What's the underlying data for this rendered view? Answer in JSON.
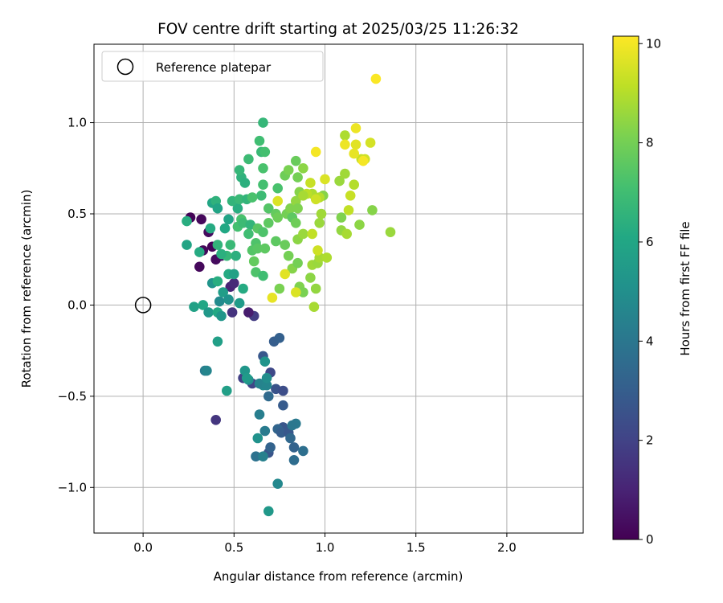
{
  "chart_data": {
    "type": "scatter",
    "title": "FOV centre drift starting at 2025/03/25 11:26:32",
    "xlabel": "Angular distance from reference (arcmin)",
    "ylabel": "Rotation from reference (arcmin)",
    "xlim": [
      -0.27,
      2.42
    ],
    "ylim": [
      -1.25,
      1.43
    ],
    "xticks": [
      0.0,
      0.5,
      1.0,
      1.5,
      2.0
    ],
    "xtick_labels": [
      "0.0",
      "0.5",
      "1.0",
      "1.5",
      "2.0"
    ],
    "yticks": [
      -1.0,
      -0.5,
      0.0,
      0.5,
      1.0
    ],
    "ytick_labels": [
      "−1.0",
      "−0.5",
      "0.0",
      "0.5",
      "1.0"
    ],
    "grid": true,
    "legend": {
      "placement": "upper-left",
      "entries": [
        {
          "label": "Reference platepar",
          "marker": "open-circle"
        }
      ]
    },
    "reference_point": {
      "x": 0.0,
      "y": 0.0
    },
    "colorbar": {
      "label": "Hours from first FF file",
      "range": [
        0,
        10.15
      ],
      "ticks": [
        0,
        2,
        4,
        6,
        8,
        10
      ],
      "tick_labels": [
        "0",
        "2",
        "4",
        "6",
        "8",
        "10"
      ],
      "colormap": "viridis"
    },
    "points": [
      [
        0.26,
        0.48,
        0.1
      ],
      [
        0.32,
        0.47,
        0.2
      ],
      [
        0.36,
        0.4,
        0.3
      ],
      [
        0.33,
        0.3,
        0.2
      ],
      [
        0.38,
        0.32,
        0.1
      ],
      [
        0.4,
        0.25,
        0.3
      ],
      [
        0.31,
        0.21,
        0.2
      ],
      [
        0.43,
        0.27,
        0.4
      ],
      [
        0.48,
        0.1,
        1.0
      ],
      [
        0.5,
        0.12,
        1.2
      ],
      [
        0.49,
        -0.04,
        1.5
      ],
      [
        0.61,
        -0.06,
        1.8
      ],
      [
        0.58,
        -0.04,
        0.8
      ],
      [
        0.4,
        -0.63,
        1.6
      ],
      [
        0.55,
        -0.4,
        1.9
      ],
      [
        0.6,
        -0.43,
        2.1
      ],
      [
        0.66,
        -0.28,
        2.8
      ],
      [
        0.7,
        -0.37,
        2.2
      ],
      [
        0.72,
        -0.2,
        3.0
      ],
      [
        0.75,
        -0.18,
        3.1
      ],
      [
        0.73,
        -0.46,
        2.6
      ],
      [
        0.77,
        -0.47,
        2.4
      ],
      [
        0.77,
        -0.55,
        2.9
      ],
      [
        0.77,
        -0.67,
        2.7
      ],
      [
        0.74,
        -0.68,
        3.3
      ],
      [
        0.76,
        -0.7,
        3.0
      ],
      [
        0.8,
        -0.7,
        2.8
      ],
      [
        0.81,
        -0.73,
        3.4
      ],
      [
        0.83,
        -0.85,
        3.6
      ],
      [
        0.83,
        -0.78,
        3.2
      ],
      [
        0.88,
        -0.8,
        3.7
      ],
      [
        0.84,
        -0.65,
        4.1
      ],
      [
        0.82,
        -0.66,
        4.0
      ],
      [
        0.69,
        -0.81,
        2.7
      ],
      [
        0.7,
        -0.78,
        3.2
      ],
      [
        0.62,
        -0.83,
        3.8
      ],
      [
        0.66,
        -0.83,
        4.4
      ],
      [
        0.67,
        -0.69,
        4.2
      ],
      [
        0.69,
        -0.5,
        3.5
      ],
      [
        0.64,
        -0.6,
        4.3
      ],
      [
        0.66,
        -0.44,
        4.8
      ],
      [
        0.64,
        -0.43,
        4.5
      ],
      [
        0.68,
        -0.44,
        4.6
      ],
      [
        0.68,
        -0.4,
        4.9
      ],
      [
        0.67,
        -0.31,
        5.2
      ],
      [
        0.58,
        -0.41,
        5.0
      ],
      [
        0.56,
        -0.36,
        5.3
      ],
      [
        0.57,
        -0.4,
        5.5
      ],
      [
        0.63,
        -0.73,
        5.1
      ],
      [
        0.74,
        -0.98,
        4.7
      ],
      [
        0.69,
        -1.13,
        5.4
      ],
      [
        0.46,
        -0.47,
        5.7
      ],
      [
        0.34,
        -0.36,
        4.2
      ],
      [
        0.35,
        -0.36,
        4.6
      ],
      [
        0.41,
        -0.2,
        5.7
      ],
      [
        0.28,
        -0.01,
        5.8
      ],
      [
        0.33,
        0.0,
        6.0
      ],
      [
        0.36,
        -0.04,
        5.4
      ],
      [
        0.41,
        -0.04,
        6.1
      ],
      [
        0.43,
        -0.06,
        5.3
      ],
      [
        0.42,
        0.02,
        4.8
      ],
      [
        0.44,
        0.07,
        5.6
      ],
      [
        0.38,
        0.12,
        5.2
      ],
      [
        0.41,
        0.13,
        6.3
      ],
      [
        0.47,
        0.17,
        6.2
      ],
      [
        0.47,
        0.03,
        5.1
      ],
      [
        0.53,
        0.01,
        5.5
      ],
      [
        0.55,
        0.09,
        6.2
      ],
      [
        0.5,
        0.17,
        5.8
      ],
      [
        0.51,
        0.27,
        6.4
      ],
      [
        0.46,
        0.27,
        6.7
      ],
      [
        0.45,
        0.42,
        6.1
      ],
      [
        0.47,
        0.47,
        5.9
      ],
      [
        0.52,
        0.53,
        6.3
      ],
      [
        0.49,
        0.57,
        6.6
      ],
      [
        0.38,
        0.56,
        6.0
      ],
      [
        0.4,
        0.57,
        6.5
      ],
      [
        0.41,
        0.53,
        5.9
      ],
      [
        0.37,
        0.42,
        6.2
      ],
      [
        0.24,
        0.46,
        6.3
      ],
      [
        0.24,
        0.33,
        5.9
      ],
      [
        0.31,
        0.29,
        6.2
      ],
      [
        0.41,
        0.33,
        6.6
      ],
      [
        0.43,
        0.28,
        6.4
      ],
      [
        0.48,
        0.33,
        6.8
      ],
      [
        0.52,
        0.43,
        7.1
      ],
      [
        0.54,
        0.47,
        7.2
      ],
      [
        0.55,
        0.45,
        6.9
      ],
      [
        0.53,
        0.58,
        6.8
      ],
      [
        0.57,
        0.58,
        6.6
      ],
      [
        0.54,
        0.7,
        6.5
      ],
      [
        0.53,
        0.74,
        6.7
      ],
      [
        0.56,
        0.67,
        6.4
      ],
      [
        0.58,
        0.8,
        6.9
      ],
      [
        0.65,
        0.84,
        6.8
      ],
      [
        0.67,
        0.84,
        7.1
      ],
      [
        0.66,
        1.0,
        6.7
      ],
      [
        0.64,
        0.9,
        7.0
      ],
      [
        0.66,
        0.75,
        7.2
      ],
      [
        0.66,
        0.66,
        7.1
      ],
      [
        0.65,
        0.6,
        6.9
      ],
      [
        0.6,
        0.59,
        7.2
      ],
      [
        0.59,
        0.44,
        6.6
      ],
      [
        0.58,
        0.39,
        7.0
      ],
      [
        0.62,
        0.34,
        7.3
      ],
      [
        0.6,
        0.3,
        7.4
      ],
      [
        0.63,
        0.31,
        7.5
      ],
      [
        0.67,
        0.31,
        7.6
      ],
      [
        0.61,
        0.24,
        7.7
      ],
      [
        0.62,
        0.18,
        7.3
      ],
      [
        0.66,
        0.16,
        7.0
      ],
      [
        0.63,
        0.42,
        7.5
      ],
      [
        0.66,
        0.4,
        7.3
      ],
      [
        0.69,
        0.45,
        7.6
      ],
      [
        0.69,
        0.53,
        7.4
      ],
      [
        0.73,
        0.5,
        7.7
      ],
      [
        0.74,
        0.48,
        7.9
      ],
      [
        0.74,
        0.64,
        7.2
      ],
      [
        0.73,
        0.35,
        7.6
      ],
      [
        0.78,
        0.33,
        7.8
      ],
      [
        0.8,
        0.27,
        8.0
      ],
      [
        0.82,
        0.2,
        8.3
      ],
      [
        0.75,
        0.09,
        8.1
      ],
      [
        0.79,
        0.5,
        8.0
      ],
      [
        0.81,
        0.53,
        8.2
      ],
      [
        0.78,
        0.71,
        7.9
      ],
      [
        0.8,
        0.74,
        8.1
      ],
      [
        0.84,
        0.79,
        7.8
      ],
      [
        0.85,
        0.7,
        8.0
      ],
      [
        0.86,
        0.62,
        8.3
      ],
      [
        0.84,
        0.57,
        8.5
      ],
      [
        0.88,
        0.75,
        8.4
      ],
      [
        0.85,
        0.53,
        8.2
      ],
      [
        0.82,
        0.48,
        7.6
      ],
      [
        0.84,
        0.45,
        7.9
      ],
      [
        0.85,
        0.36,
        8.4
      ],
      [
        0.88,
        0.39,
        8.6
      ],
      [
        0.85,
        0.23,
        8.0
      ],
      [
        0.86,
        0.1,
        8.2
      ],
      [
        0.92,
        0.15,
        8.4
      ],
      [
        0.95,
        0.09,
        8.5
      ],
      [
        0.93,
        0.22,
        8.7
      ],
      [
        0.88,
        0.07,
        8.1
      ],
      [
        0.94,
        -0.01,
        8.8
      ],
      [
        0.96,
        0.23,
        8.6
      ],
      [
        0.97,
        0.26,
        8.8
      ],
      [
        1.01,
        0.26,
        8.9
      ],
      [
        0.97,
        0.45,
        8.6
      ],
      [
        0.98,
        0.5,
        8.7
      ],
      [
        0.99,
        0.6,
        8.3
      ],
      [
        0.97,
        0.59,
        9.0
      ],
      [
        0.93,
        0.61,
        8.9
      ],
      [
        0.9,
        0.61,
        9.1
      ],
      [
        0.88,
        0.6,
        8.8
      ],
      [
        0.92,
        0.67,
        9.3
      ],
      [
        0.95,
        0.58,
        9.4
      ],
      [
        0.96,
        0.3,
        9.4
      ],
      [
        0.84,
        0.07,
        9.6
      ],
      [
        0.78,
        0.17,
        9.7
      ],
      [
        0.71,
        0.04,
        9.8
      ],
      [
        0.74,
        0.57,
        9.6
      ],
      [
        0.93,
        0.39,
        9.2
      ],
      [
        1.09,
        0.48,
        8.2
      ],
      [
        1.09,
        0.41,
        8.5
      ],
      [
        1.12,
        0.39,
        8.8
      ],
      [
        1.08,
        0.68,
        8.6
      ],
      [
        1.11,
        0.72,
        8.7
      ],
      [
        1.11,
        0.93,
        8.9
      ],
      [
        1.16,
        0.66,
        9.0
      ],
      [
        1.14,
        0.6,
        9.3
      ],
      [
        1.13,
        0.52,
        9.2
      ],
      [
        1.19,
        0.44,
        8.4
      ],
      [
        1.26,
        0.52,
        8.3
      ],
      [
        1.36,
        0.4,
        8.6
      ],
      [
        1.2,
        0.8,
        9.3
      ],
      [
        1.22,
        0.8,
        9.4
      ],
      [
        1.25,
        0.89,
        9.5
      ],
      [
        1.17,
        0.88,
        9.7
      ],
      [
        1.16,
        0.83,
        9.8
      ],
      [
        1.17,
        0.97,
        9.9
      ],
      [
        1.11,
        0.88,
        9.9
      ],
      [
        0.95,
        0.84,
        10.0
      ],
      [
        1.0,
        0.69,
        9.6
      ],
      [
        1.21,
        0.79,
        10.0
      ],
      [
        1.28,
        1.24,
        10.1
      ]
    ]
  }
}
